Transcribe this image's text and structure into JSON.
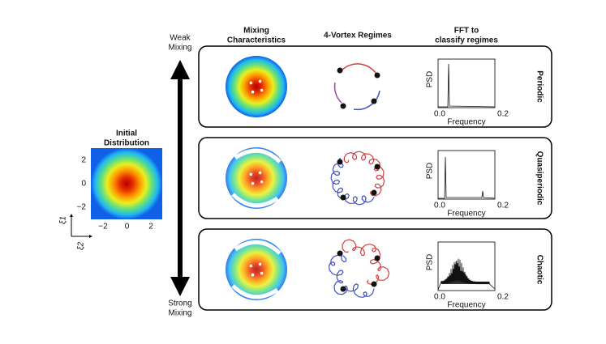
{
  "initial": {
    "title": [
      "Initial",
      "Distribution"
    ],
    "yticks": [
      "2",
      "0",
      "−2"
    ],
    "xticks": [
      "−2",
      "0",
      "2"
    ],
    "axis_labels": {
      "vertical": "ξ1",
      "horizontal": "ξ2"
    }
  },
  "arrow": {
    "top": [
      "Weak",
      "Mixing"
    ],
    "bottom": [
      "Strong",
      "Mixing"
    ]
  },
  "headers": [
    [
      "Mixing",
      "Characteristics"
    ],
    [
      "4-Vortex Regimes"
    ],
    [
      "FFT to",
      "classify regimes"
    ]
  ],
  "rows": [
    {
      "label": "Periodic",
      "fft": {
        "ylabel": "PSD",
        "xlabel": "Frequency",
        "xticks": [
          "0.0",
          "0.2"
        ]
      }
    },
    {
      "label": "Quasiperiodic",
      "fft": {
        "ylabel": "PSD",
        "xlabel": "Frequency",
        "xticks": [
          "0.0",
          "0.2"
        ]
      }
    },
    {
      "label": "Chaotic",
      "fft": {
        "ylabel": "PSD",
        "xlabel": "Frequency",
        "xticks": [
          "0.0",
          "0.2"
        ]
      }
    }
  ]
}
